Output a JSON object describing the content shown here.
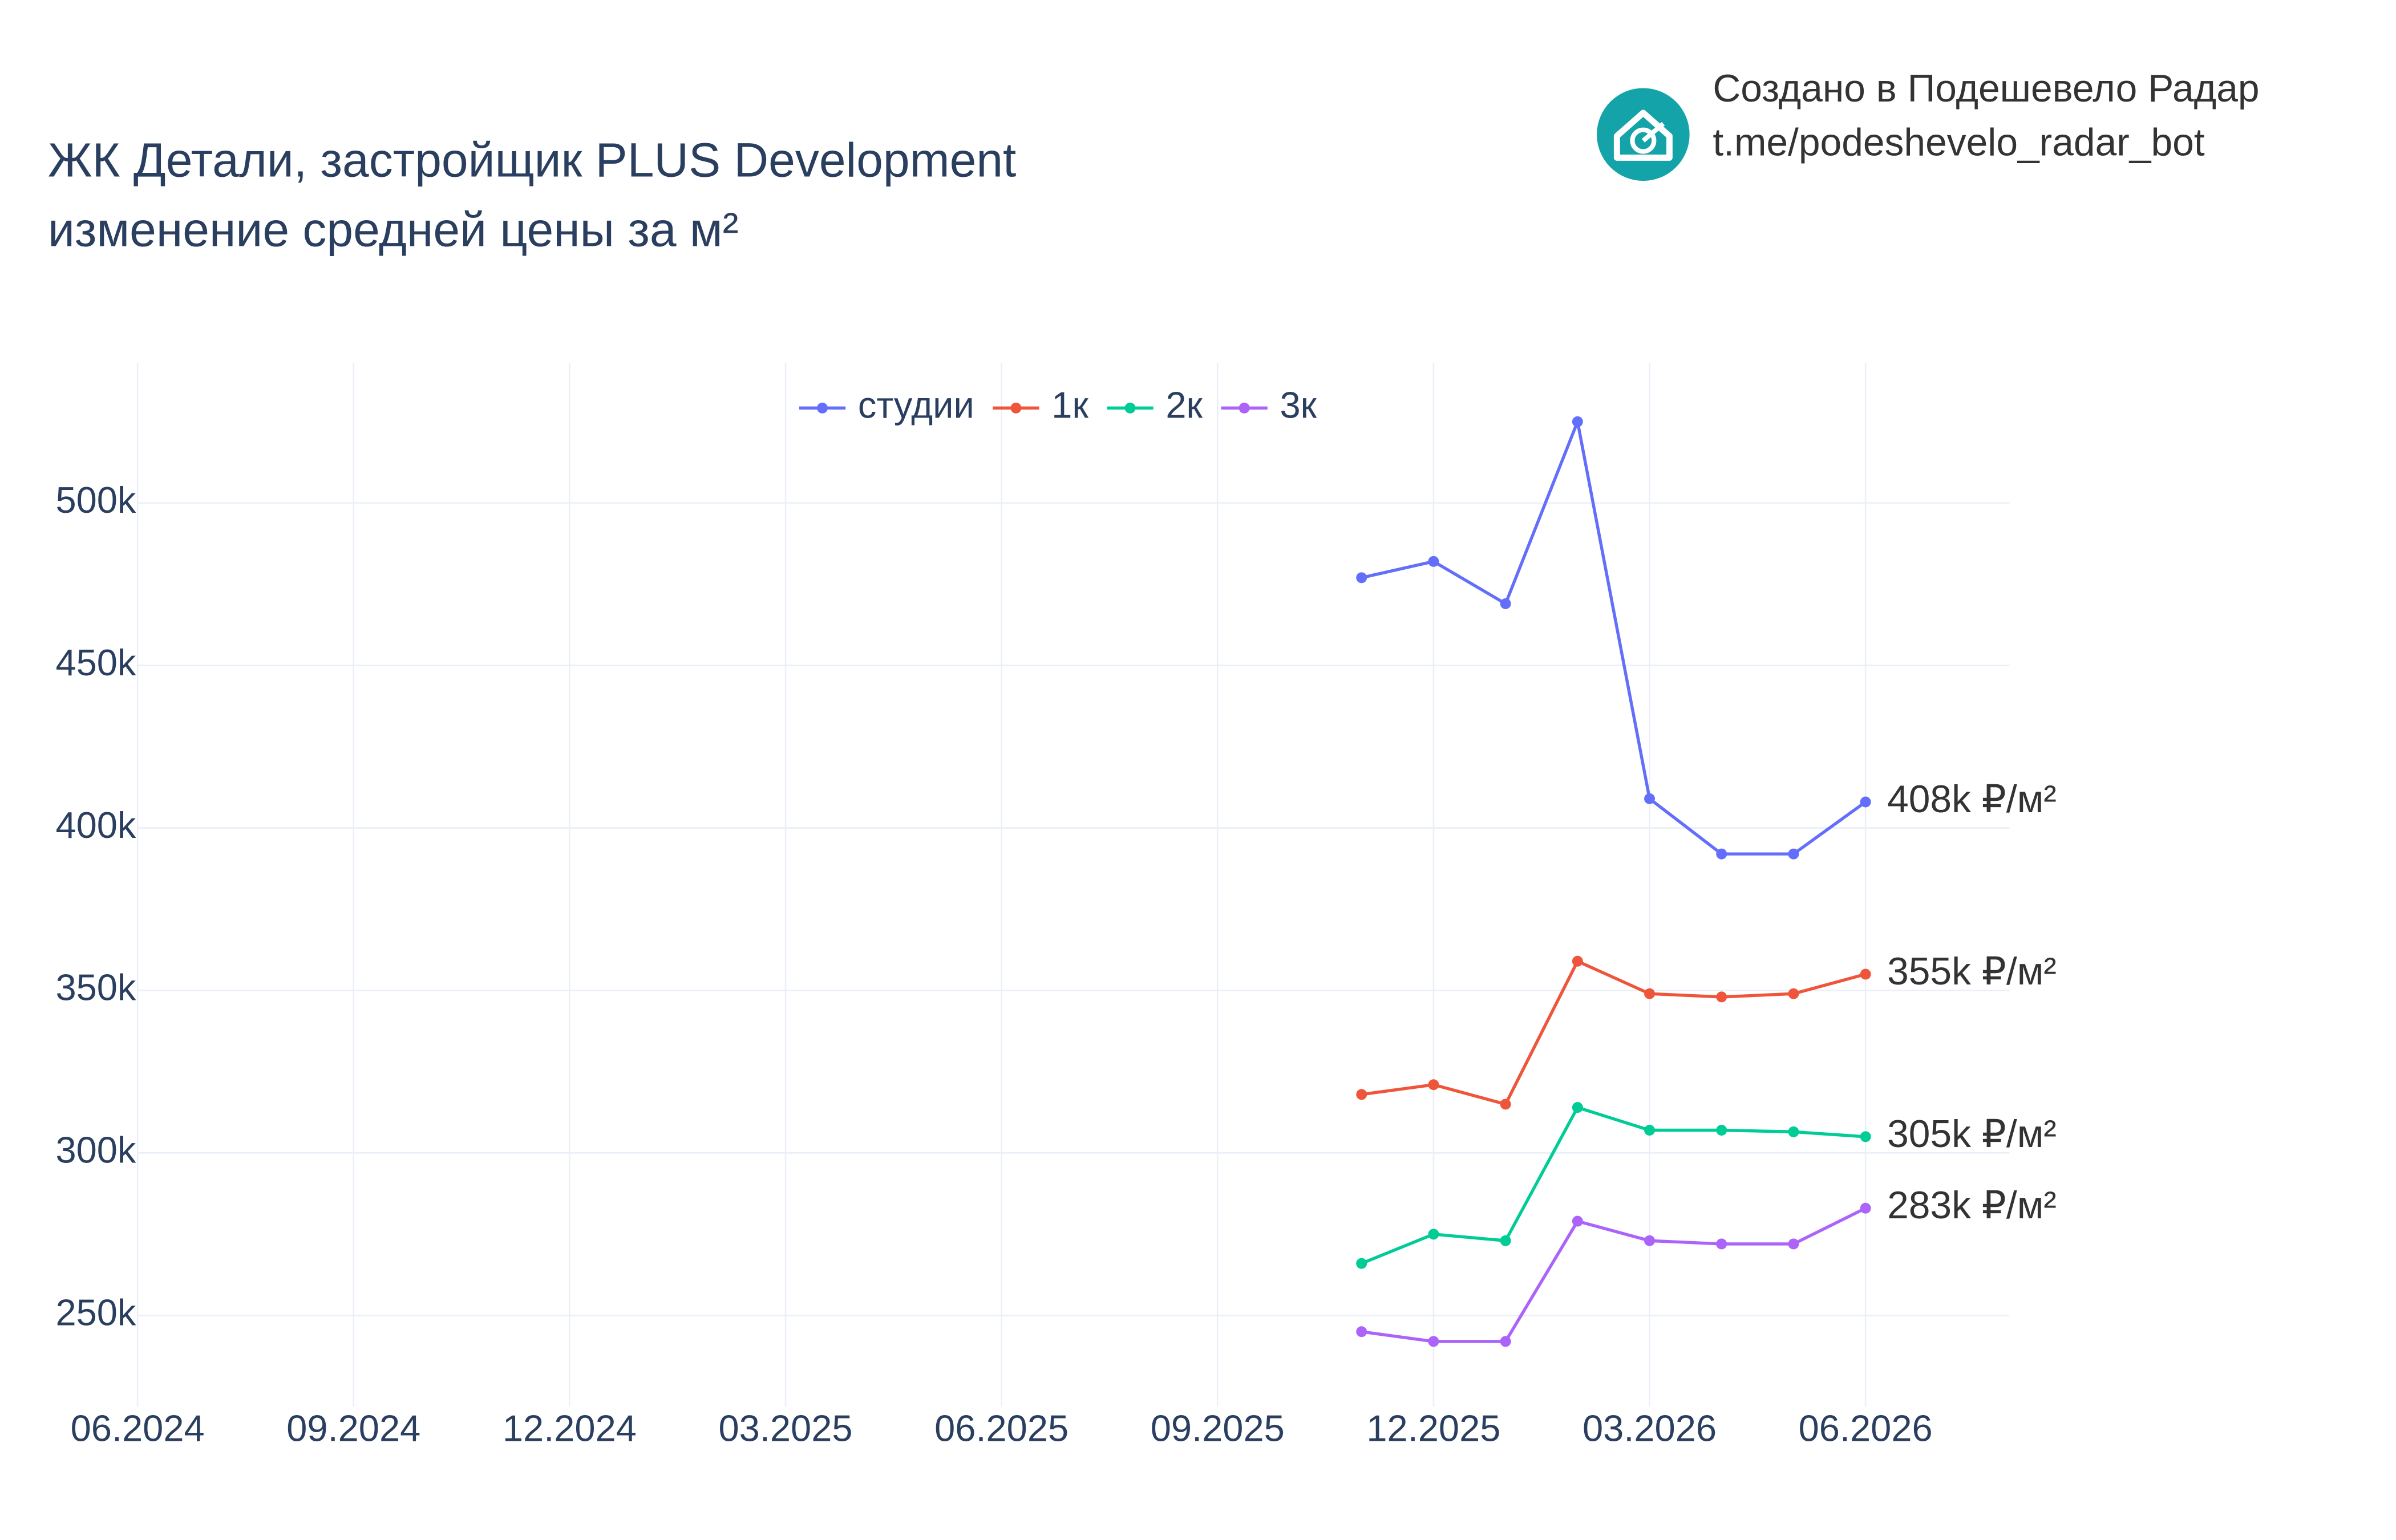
{
  "header": {
    "credit": "Создано в Подешевело Радар",
    "link": "t.me/podeshevelo_radar_bot"
  },
  "chart_data": {
    "type": "line",
    "title": [
      "ЖК Детали, застройщик PLUS Development",
      "изменение средней цены за м²"
    ],
    "x": [
      "11.2025",
      "12.2025",
      "01.2026",
      "02.2026",
      "03.2026",
      "04.2026",
      "05.2026",
      "06.2026"
    ],
    "xlim": [
      "06.2024",
      "08.2026"
    ],
    "xticks": [
      "06.2024",
      "09.2024",
      "12.2024",
      "03.2025",
      "06.2025",
      "09.2025",
      "12.2025",
      "03.2026",
      "06.2026"
    ],
    "ylim": [
      222000,
      543000
    ],
    "yticks": [
      {
        "value": 250000,
        "label": "250k"
      },
      {
        "value": 300000,
        "label": "300k"
      },
      {
        "value": 350000,
        "label": "350k"
      },
      {
        "value": 400000,
        "label": "400k"
      },
      {
        "value": 450000,
        "label": "450k"
      },
      {
        "value": 500000,
        "label": "500k"
      }
    ],
    "grid": true,
    "legend": "top",
    "series": [
      {
        "name": "студии",
        "color": "#636efa",
        "values": [
          477000,
          482000,
          469000,
          525000,
          409000,
          392000,
          392000,
          408000
        ],
        "value_labels": [
          null,
          null,
          null,
          null,
          null,
          null,
          null,
          "408k ₽/м²"
        ]
      },
      {
        "name": "1к",
        "color": "#ef553b",
        "values": [
          318000,
          321000,
          315000,
          359000,
          349000,
          348000,
          349000,
          355000
        ],
        "value_labels": [
          null,
          null,
          null,
          null,
          null,
          null,
          null,
          "355k ₽/м²"
        ]
      },
      {
        "name": "2к",
        "color": "#00cc96",
        "values": [
          266000,
          275000,
          273000,
          314000,
          307000,
          307000,
          306500,
          305000
        ],
        "value_labels": [
          null,
          null,
          null,
          null,
          null,
          null,
          null,
          "305k ₽/м²"
        ]
      },
      {
        "name": "3к",
        "color": "#ab63fa",
        "values": [
          245000,
          242000,
          242000,
          279000,
          273000,
          272000,
          272000,
          283000
        ],
        "value_labels": [
          null,
          null,
          null,
          null,
          null,
          null,
          null,
          "283k ₽/м²"
        ]
      }
    ]
  }
}
